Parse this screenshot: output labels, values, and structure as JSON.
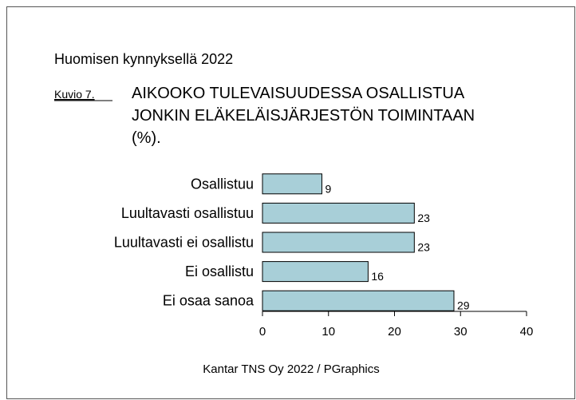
{
  "chart_data": {
    "type": "bar",
    "orientation": "horizontal",
    "header": "Huomisen kynnyksellä 2022",
    "figure_label": "Kuvio 7.",
    "title": [
      "AIKOOKO TULEVAISUUDESSA OSALLISTUA",
      "JONKIN ELÄKELÄISJÄRJESTÖN TOIMINTAAN",
      "(%)."
    ],
    "categories": [
      "Osallistuu",
      "Luultavasti osallistuu",
      "Luultavasti ei osallistu",
      "Ei osallistu",
      "Ei osaa sanoa"
    ],
    "values": [
      9,
      23,
      23,
      16,
      29
    ],
    "color": "#a8cfd8",
    "xlim": [
      0,
      40
    ],
    "xticks": [
      0,
      10,
      20,
      30,
      40
    ],
    "source": "Kantar TNS Oy 2022 / PGraphics"
  }
}
